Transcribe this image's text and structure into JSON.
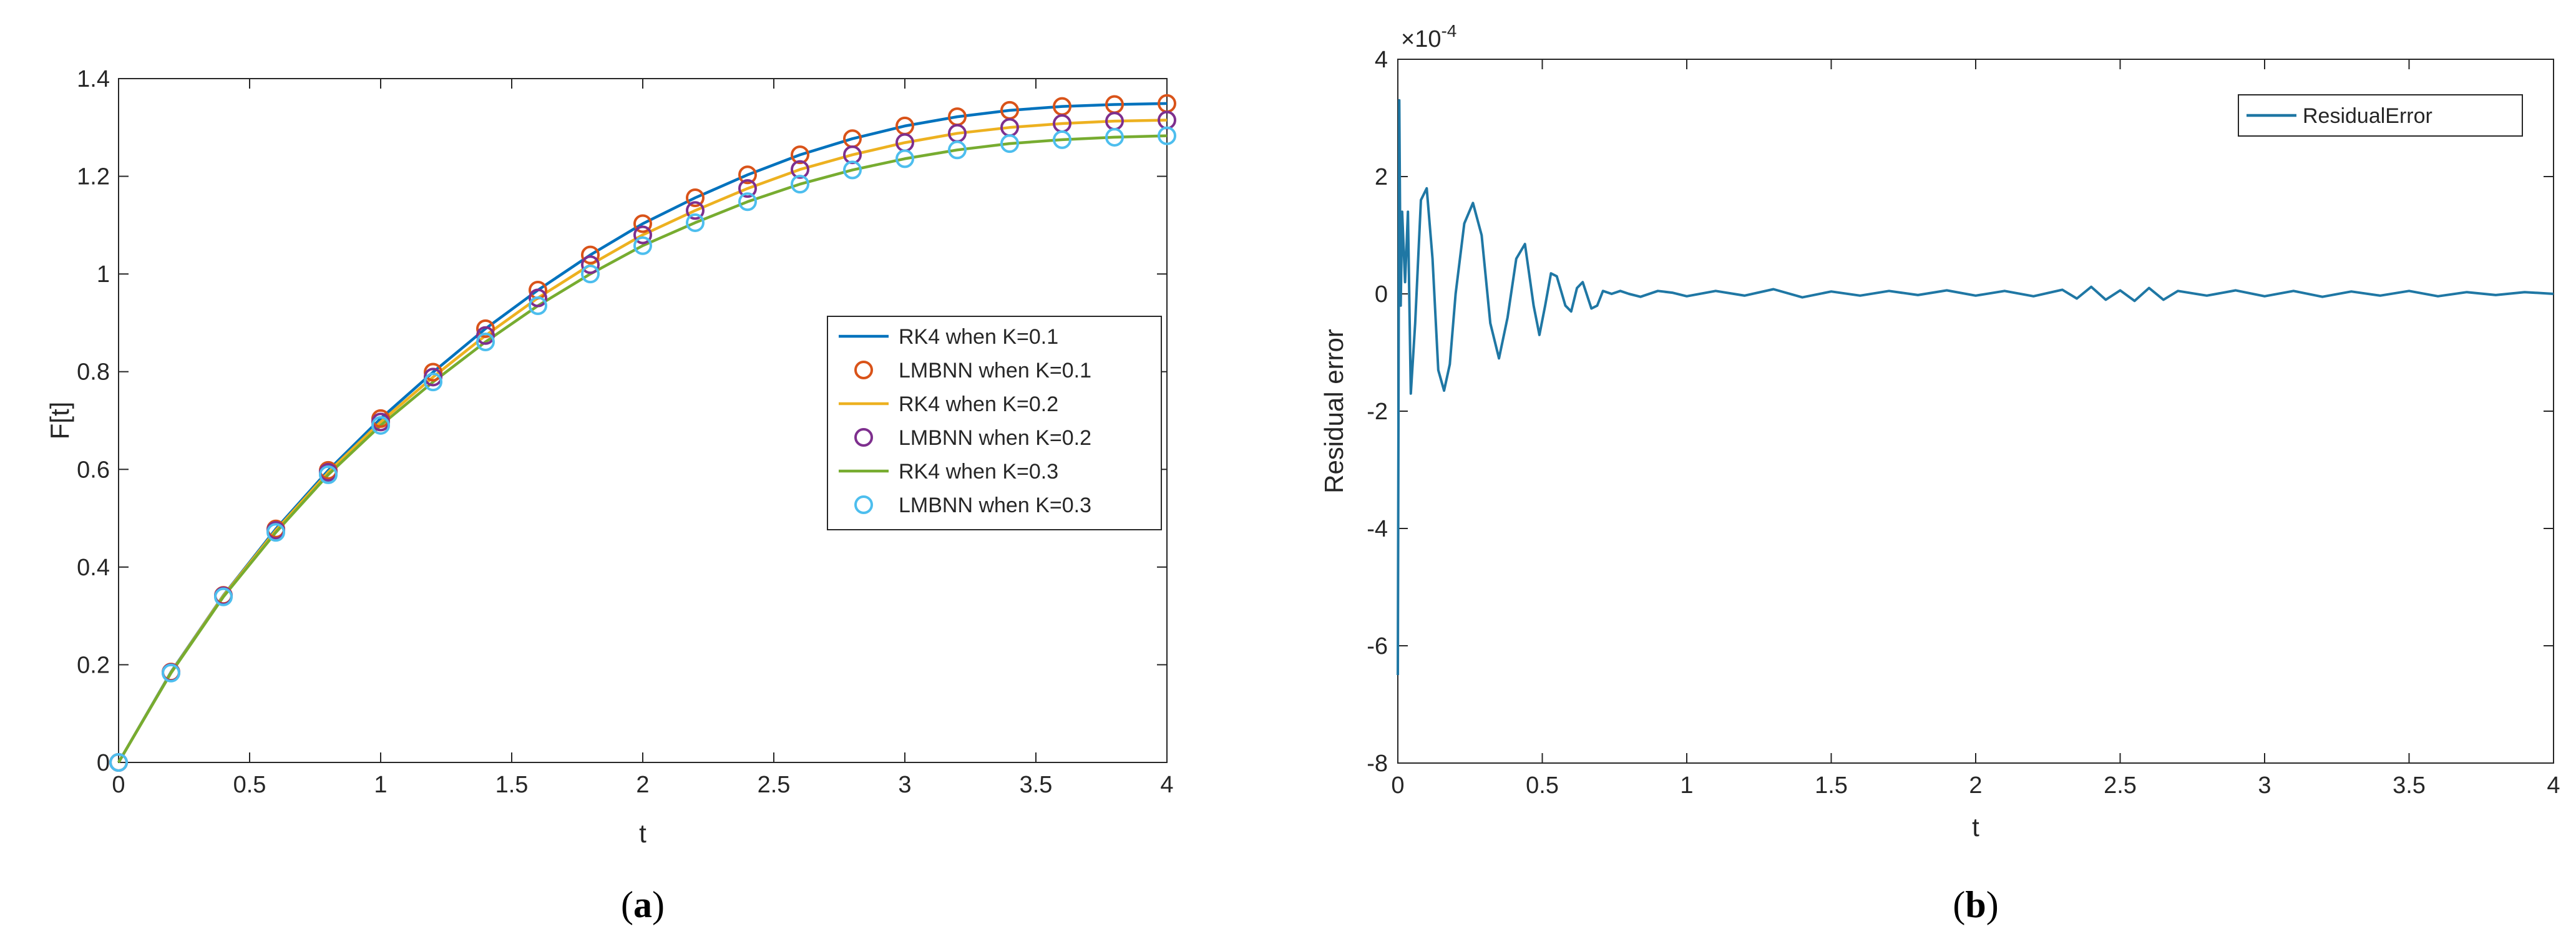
{
  "chart_data": [
    {
      "type": "line",
      "panel": "a",
      "caption_letter": "a",
      "xlabel": "t",
      "ylabel": "F[t]",
      "xlim": [
        0,
        4
      ],
      "ylim": [
        0,
        1.4
      ],
      "xticks": [
        0,
        0.5,
        1,
        1.5,
        2,
        2.5,
        3,
        3.5,
        4
      ],
      "yticks": [
        0,
        0.2,
        0.4,
        0.6,
        0.8,
        1,
        1.2,
        1.4
      ],
      "xtick_labels": [
        "0",
        "0.5",
        "1",
        "1.5",
        "2",
        "2.5",
        "3",
        "3.5",
        "4"
      ],
      "ytick_labels": [
        "0",
        "0.2",
        "0.4",
        "0.6",
        "0.8",
        "1",
        "1.2",
        "1.4"
      ],
      "legend_position": "center-right",
      "x": [
        0,
        0.2,
        0.4,
        0.6,
        0.8,
        1.0,
        1.2,
        1.4,
        1.6,
        1.8,
        2.0,
        2.2,
        2.4,
        2.6,
        2.8,
        3.0,
        3.2,
        3.4,
        3.6,
        3.8,
        4.0
      ],
      "series": [
        {
          "name": "RK4 when K=0.1",
          "style": "line",
          "color": "#0072BD",
          "values": [
            0,
            0.185,
            0.342,
            0.478,
            0.598,
            0.704,
            0.799,
            0.888,
            0.967,
            1.039,
            1.103,
            1.156,
            1.203,
            1.244,
            1.277,
            1.303,
            1.322,
            1.335,
            1.343,
            1.347,
            1.349
          ]
        },
        {
          "name": "LMBNN when K=0.1",
          "style": "marker",
          "color": "#D95319",
          "values": [
            0,
            0.185,
            0.342,
            0.478,
            0.598,
            0.704,
            0.799,
            0.888,
            0.967,
            1.039,
            1.103,
            1.156,
            1.203,
            1.244,
            1.277,
            1.303,
            1.322,
            1.335,
            1.343,
            1.347,
            1.349
          ]
        },
        {
          "name": "RK4 when K=0.2",
          "style": "line",
          "color": "#EDB120",
          "values": [
            0,
            0.184,
            0.341,
            0.475,
            0.594,
            0.697,
            0.789,
            0.874,
            0.951,
            1.019,
            1.08,
            1.13,
            1.175,
            1.214,
            1.244,
            1.269,
            1.288,
            1.3,
            1.308,
            1.313,
            1.315
          ]
        },
        {
          "name": "LMBNN when K=0.2",
          "style": "marker",
          "color": "#7E2F8E",
          "values": [
            0,
            0.184,
            0.341,
            0.475,
            0.594,
            0.697,
            0.789,
            0.874,
            0.951,
            1.019,
            1.08,
            1.13,
            1.175,
            1.214,
            1.244,
            1.269,
            1.288,
            1.3,
            1.308,
            1.313,
            1.315
          ]
        },
        {
          "name": "RK4 when K=0.3",
          "style": "line",
          "color": "#77AC30",
          "values": [
            0,
            0.183,
            0.339,
            0.471,
            0.589,
            0.69,
            0.779,
            0.861,
            0.935,
            1.0,
            1.058,
            1.105,
            1.148,
            1.184,
            1.213,
            1.236,
            1.254,
            1.267,
            1.275,
            1.28,
            1.283
          ]
        },
        {
          "name": "LMBNN when K=0.3",
          "style": "marker",
          "color": "#4DBEEE",
          "values": [
            0,
            0.183,
            0.339,
            0.471,
            0.589,
            0.69,
            0.779,
            0.861,
            0.935,
            1.0,
            1.058,
            1.105,
            1.148,
            1.184,
            1.213,
            1.236,
            1.254,
            1.267,
            1.275,
            1.28,
            1.283
          ]
        }
      ]
    },
    {
      "type": "line",
      "panel": "b",
      "caption_letter": "b",
      "xlabel": "t",
      "ylabel": "Residual error",
      "exponent_label": "×10",
      "exponent_power": "-4",
      "y_scale": 0.0001,
      "xlim": [
        0,
        4
      ],
      "ylim": [
        -8,
        4
      ],
      "xticks": [
        0,
        0.5,
        1,
        1.5,
        2,
        2.5,
        3,
        3.5,
        4
      ],
      "yticks": [
        -8,
        -6,
        -4,
        -2,
        0,
        2,
        4
      ],
      "xtick_labels": [
        "0",
        "0.5",
        "1",
        "1.5",
        "2",
        "2.5",
        "3",
        "3.5",
        "4"
      ],
      "ytick_labels": [
        "-8",
        "-6",
        "-4",
        "-2",
        "0",
        "2",
        "4"
      ],
      "legend_position": "top-right",
      "series": [
        {
          "name": "ResidualError",
          "color": "#1F77A4",
          "units": "x1e-4",
          "x": [
            0,
            0.005,
            0.01,
            0.015,
            0.025,
            0.035,
            0.045,
            0.06,
            0.08,
            0.1,
            0.12,
            0.14,
            0.16,
            0.18,
            0.2,
            0.23,
            0.26,
            0.29,
            0.32,
            0.35,
            0.38,
            0.41,
            0.44,
            0.47,
            0.49,
            0.51,
            0.53,
            0.55,
            0.58,
            0.6,
            0.62,
            0.64,
            0.67,
            0.69,
            0.71,
            0.74,
            0.77,
            0.8,
            0.84,
            0.9,
            0.95,
            1.0,
            1.1,
            1.2,
            1.3,
            1.4,
            1.5,
            1.6,
            1.7,
            1.8,
            1.9,
            2.0,
            2.1,
            2.2,
            2.3,
            2.35,
            2.4,
            2.45,
            2.5,
            2.55,
            2.6,
            2.65,
            2.7,
            2.8,
            2.9,
            3.0,
            3.1,
            3.2,
            3.3,
            3.4,
            3.5,
            3.6,
            3.7,
            3.8,
            3.9,
            4.0
          ],
          "values": [
            -6.5,
            3.3,
            -0.2,
            1.4,
            0.2,
            1.4,
            -1.7,
            -0.5,
            1.6,
            1.8,
            0.6,
            -1.3,
            -1.65,
            -1.2,
            0.0,
            1.2,
            1.55,
            1.0,
            -0.5,
            -1.1,
            -0.4,
            0.6,
            0.85,
            -0.2,
            -0.7,
            -0.2,
            0.35,
            0.3,
            -0.2,
            -0.3,
            0.1,
            0.2,
            -0.25,
            -0.2,
            0.05,
            0.0,
            0.05,
            0.0,
            -0.05,
            0.05,
            0.02,
            -0.04,
            0.05,
            -0.03,
            0.08,
            -0.06,
            0.04,
            -0.03,
            0.05,
            -0.02,
            0.06,
            -0.03,
            0.05,
            -0.04,
            0.07,
            -0.08,
            0.12,
            -0.1,
            0.06,
            -0.12,
            0.1,
            -0.1,
            0.05,
            -0.03,
            0.06,
            -0.04,
            0.05,
            -0.05,
            0.04,
            -0.03,
            0.05,
            -0.04,
            0.03,
            -0.02,
            0.03,
            0.0
          ]
        }
      ]
    }
  ]
}
